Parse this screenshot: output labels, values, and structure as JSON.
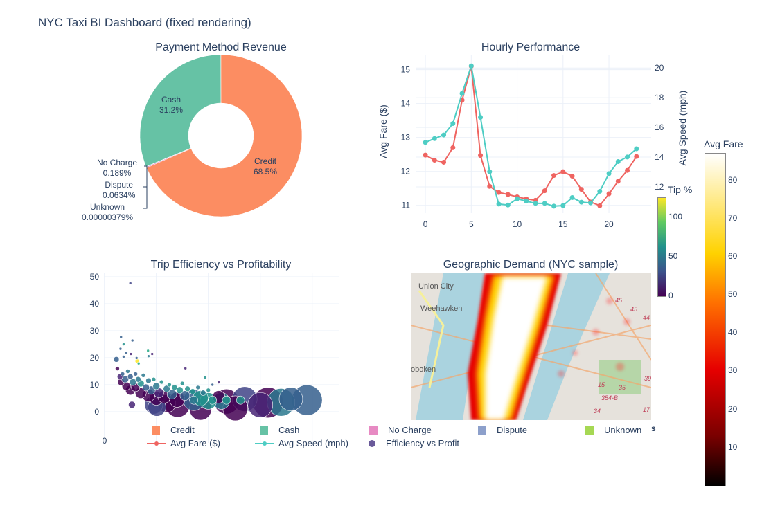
{
  "title": "NYC Taxi BI Dashboard (fixed rendering)",
  "chart_data": [
    {
      "type": "pie",
      "title": "Payment Method Revenue",
      "hole": true,
      "slices": [
        {
          "label": "Credit",
          "percent": 68.5,
          "text": "68.5%",
          "color": "#fc8d62"
        },
        {
          "label": "No Charge",
          "percent": 0.189,
          "text": "0.189%",
          "color": "#e78ac3"
        },
        {
          "label": "Dispute",
          "percent": 0.0634,
          "text": "0.0634%",
          "color": "#8da0cb"
        },
        {
          "label": "Unknown",
          "percent": 3.79e-06,
          "text": "0.00000379%",
          "color": "#a6d854"
        },
        {
          "label": "Cash",
          "percent": 31.2,
          "text": "31.2%",
          "color": "#66c2a5"
        }
      ]
    },
    {
      "type": "line",
      "title": "Hourly Performance",
      "ylabel": "Avg Fare ($)",
      "y2label": "Avg Speed (mph)",
      "xlim": [
        -1.06,
        24.6
      ],
      "ylim": [
        10.77,
        15.42
      ],
      "y2lim": [
        10.23,
        20.85
      ],
      "xticks": [
        "0",
        "5",
        "10",
        "15",
        "20"
      ],
      "yticks": [
        "11",
        "12",
        "13",
        "14",
        "15"
      ],
      "y2ticks": [
        "12",
        "14",
        "16",
        "18",
        "20"
      ],
      "x": [
        0,
        1,
        2,
        3,
        4,
        5,
        6,
        7,
        8,
        9,
        10,
        11,
        12,
        13,
        14,
        15,
        16,
        17,
        18,
        19,
        20,
        21,
        22,
        23
      ],
      "series": [
        {
          "name": "Avg Fare ($)",
          "axis": "left",
          "color": "#ef6461",
          "values": [
            12.48,
            12.33,
            12.27,
            12.7,
            14.1,
            15.1,
            12.47,
            11.56,
            11.38,
            11.32,
            11.25,
            11.19,
            11.15,
            11.43,
            11.88,
            11.99,
            11.86,
            11.47,
            11.1,
            10.99,
            11.34,
            11.71,
            12.03,
            12.44
          ]
        },
        {
          "name": "Avg Speed (mph)",
          "axis": "right",
          "color": "#4ecdc4",
          "values": [
            14.99,
            15.25,
            15.49,
            16.26,
            18.29,
            20.14,
            16.68,
            13.02,
            10.84,
            10.78,
            11.2,
            11.04,
            10.89,
            10.89,
            10.7,
            10.74,
            11.28,
            10.97,
            10.92,
            11.7,
            12.89,
            13.7,
            14.01,
            14.56
          ]
        }
      ],
      "grid": true
    },
    {
      "type": "scatter",
      "title": "Trip Efficiency vs Profitability",
      "series_name": "Efficiency vs Profit",
      "xticks": [
        "0"
      ],
      "yticks": [
        "0",
        "10",
        "20",
        "30",
        "40",
        "50"
      ],
      "ylim": [
        -10,
        51
      ],
      "colorbar": {
        "title": "Tip %",
        "ticks": [
          "0",
          "50",
          "100"
        ],
        "range": [
          0,
          120
        ],
        "colorscale": "Viridis"
      },
      "points_fields": [
        "x",
        "y",
        "size",
        "tip"
      ],
      "points": [
        [
          0.5,
          47.6,
          2,
          20
        ],
        [
          0.32,
          27.7,
          2,
          30
        ],
        [
          0.54,
          26.4,
          2,
          40
        ],
        [
          0.37,
          25,
          2,
          55
        ],
        [
          0.31,
          23.3,
          2,
          35
        ],
        [
          0.42,
          21.8,
          2,
          40
        ],
        [
          0.37,
          20.4,
          2,
          30
        ],
        [
          0.51,
          21.4,
          2,
          10
        ],
        [
          0.62,
          19.9,
          2,
          40
        ],
        [
          0.63,
          18.8,
          3,
          120
        ],
        [
          0.84,
          22.6,
          2,
          75
        ],
        [
          0.85,
          20.6,
          2,
          45
        ],
        [
          0.92,
          21.4,
          2,
          10
        ],
        [
          0.66,
          17.9,
          2,
          75
        ],
        [
          1.56,
          16.1,
          2,
          10
        ],
        [
          1.94,
          12.7,
          2,
          65
        ],
        [
          2.2,
          10.9,
          2,
          10
        ],
        [
          2.08,
          10,
          2,
          40
        ],
        [
          0.53,
          2.6,
          5,
          10
        ],
        [
          0.23,
          19.4,
          4,
          30
        ],
        [
          0.25,
          16,
          3,
          5
        ],
        [
          0.3,
          13,
          4,
          10
        ],
        [
          0.32,
          11,
          5,
          3
        ],
        [
          0.35,
          14,
          3,
          30
        ],
        [
          0.4,
          12,
          5,
          40
        ],
        [
          0.42,
          9.5,
          6,
          5
        ],
        [
          0.45,
          15,
          3,
          45
        ],
        [
          0.5,
          13,
          4,
          35
        ],
        [
          0.5,
          8,
          7,
          2
        ],
        [
          0.55,
          11,
          5,
          50
        ],
        [
          0.6,
          14,
          3,
          40
        ],
        [
          0.6,
          9,
          6,
          5
        ],
        [
          0.65,
          12,
          4,
          45
        ],
        [
          0.7,
          7,
          8,
          3
        ],
        [
          0.7,
          10.5,
          5,
          55
        ],
        [
          0.75,
          13.5,
          3,
          50
        ],
        [
          0.8,
          9,
          5,
          40
        ],
        [
          0.85,
          6,
          9,
          2
        ],
        [
          0.85,
          11.5,
          4,
          45
        ],
        [
          0.9,
          8,
          6,
          35
        ],
        [
          0.95,
          12,
          3,
          60
        ],
        [
          1.0,
          5,
          10,
          3
        ],
        [
          1.0,
          9.5,
          5,
          50
        ],
        [
          1.05,
          7,
          7,
          10
        ],
        [
          1.1,
          11,
          3,
          55
        ],
        [
          1.15,
          5.5,
          9,
          5
        ],
        [
          1.2,
          8.5,
          5,
          45
        ],
        [
          1.25,
          10,
          3,
          60
        ],
        [
          1.3,
          6.5,
          7,
          30
        ],
        [
          1.35,
          9,
          4,
          55
        ],
        [
          1.4,
          4.5,
          11,
          3
        ],
        [
          1.45,
          8,
          5,
          60
        ],
        [
          1.5,
          10.5,
          3,
          65
        ],
        [
          1.55,
          6,
          7,
          40
        ],
        [
          1.6,
          8.5,
          4,
          60
        ],
        [
          1.7,
          7.5,
          4,
          55
        ],
        [
          1.8,
          9,
          3,
          50
        ],
        [
          1.9,
          7,
          4,
          45
        ],
        [
          2.0,
          8,
          3,
          60
        ],
        [
          1.2,
          3,
          13,
          2
        ],
        [
          0.95,
          2.5,
          13,
          20
        ],
        [
          1.85,
          5,
          11,
          60
        ],
        [
          2.2,
          5.5,
          9,
          3
        ],
        [
          2.25,
          4,
          12,
          50
        ],
        [
          1.72,
          4.3,
          15,
          30
        ],
        [
          1.01,
          1.7,
          13,
          20
        ],
        [
          1.41,
          2.6,
          18,
          5
        ],
        [
          2.0,
          4,
          12,
          60
        ],
        [
          2.35,
          3.8,
          18,
          2
        ],
        [
          2.7,
          4.7,
          18,
          20
        ],
        [
          3.15,
          3.4,
          22,
          3
        ],
        [
          3.59,
          4.7,
          17,
          40
        ],
        [
          3.9,
          4.3,
          22,
          35
        ],
        [
          2.52,
          1.3,
          18,
          3
        ],
        [
          1.85,
          1.0,
          16,
          4
        ],
        [
          3.0,
          2.5,
          18,
          10
        ],
        [
          3.4,
          3.5,
          20,
          45
        ],
        [
          1.72,
          4.3,
          6,
          50
        ],
        [
          2.35,
          4.3,
          6,
          55
        ],
        [
          2.08,
          4.3,
          6,
          60
        ],
        [
          2.62,
          4.3,
          6,
          55
        ]
      ]
    },
    {
      "type": "heatmap",
      "title": "Geographic Demand (NYC sample)",
      "colorbar": {
        "title": "Avg Fare",
        "ticks": [
          "10",
          "20",
          "30",
          "40",
          "50",
          "60",
          "70",
          "80"
        ],
        "range": [
          0,
          87
        ],
        "colorscale": "Hot"
      },
      "map_labels": [
        "Union City",
        "Weehawken",
        "oboken"
      ],
      "road_labels": [
        "45",
        "45",
        "44",
        "15",
        "35",
        "354-B",
        "34",
        "39",
        "17"
      ]
    }
  ],
  "legend": {
    "items": [
      {
        "label": "Credit",
        "color": "#fc8d62",
        "kind": "square"
      },
      {
        "label": "Cash",
        "color": "#66c2a5",
        "kind": "square"
      },
      {
        "label": "No Charge",
        "color": "#e78ac3",
        "kind": "square"
      },
      {
        "label": "Dispute",
        "color": "#8da0cb",
        "kind": "square"
      },
      {
        "label": "Unknown",
        "color": "#a6d854",
        "kind": "square"
      },
      {
        "label": "Avg Fare ($)",
        "color": "#ef6461",
        "kind": "line"
      },
      {
        "label": "Avg Speed (mph)",
        "color": "#4ecdc4",
        "kind": "line"
      },
      {
        "label": "Efficiency vs Profit",
        "color": "#6a5a9a",
        "kind": "dot"
      }
    ],
    "overflow_char": "s"
  }
}
